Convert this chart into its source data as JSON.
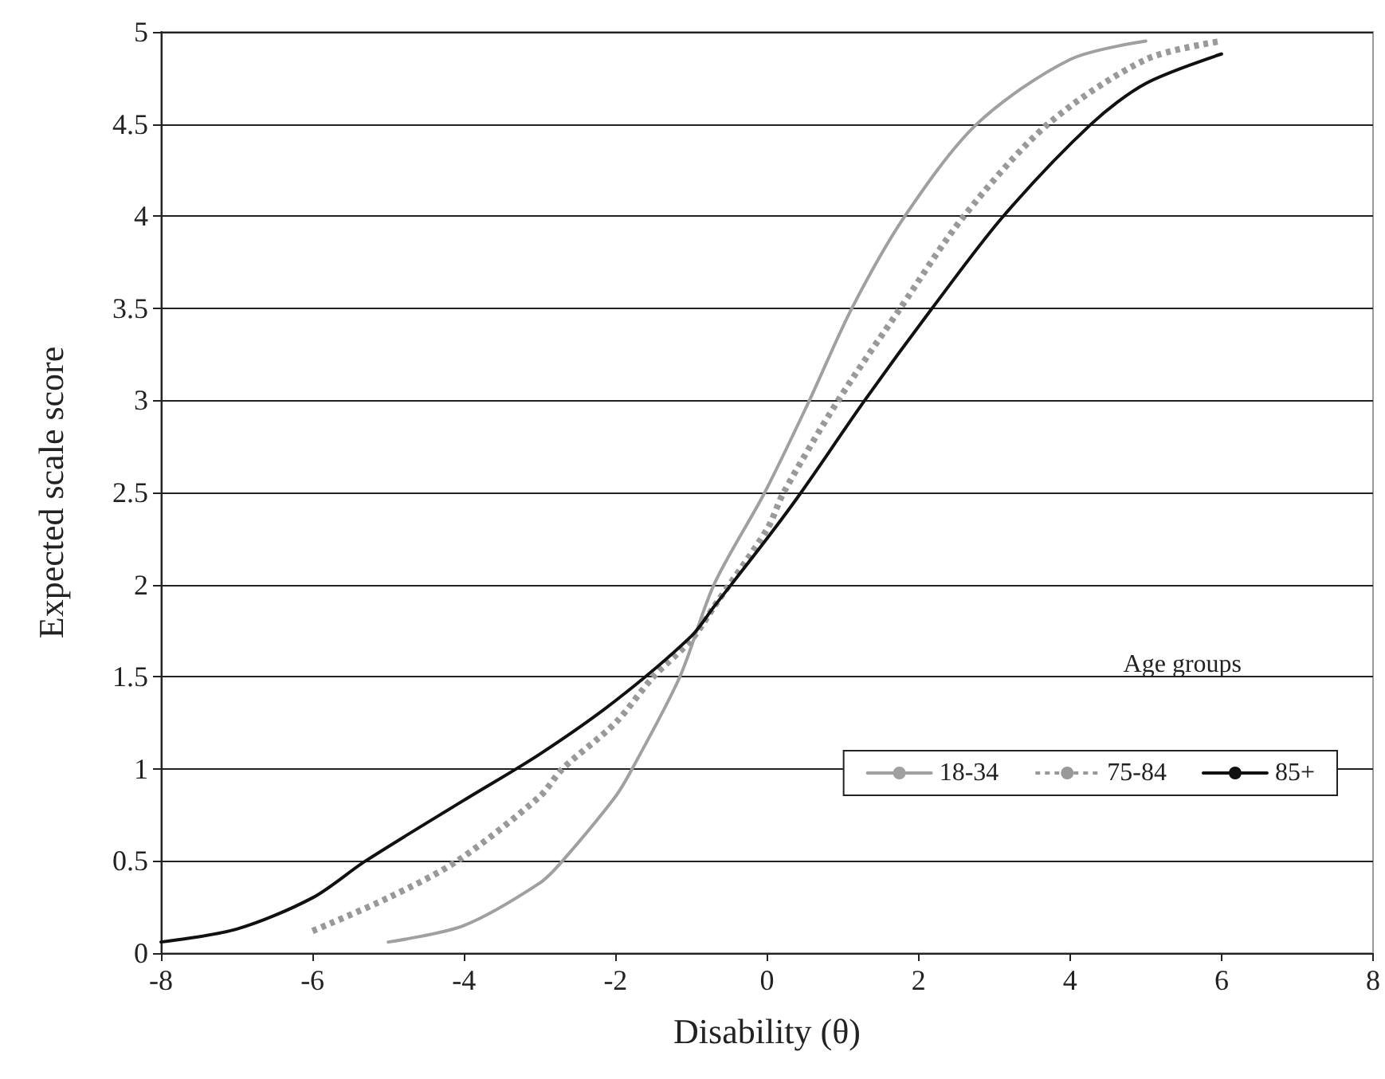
{
  "chart_data": {
    "type": "line",
    "xlabel": "Disability (θ)",
    "ylabel": "Expected scale score",
    "legend_title": "Age groups",
    "legend": "bottom right",
    "grid": "y",
    "marker": "none",
    "xlim": [
      -8,
      8
    ],
    "xticks": [
      -8,
      -6,
      -4,
      -2,
      0,
      2,
      4,
      6,
      8
    ],
    "ylim": [
      0,
      5
    ],
    "yticks": [
      0,
      0.5,
      1,
      1.5,
      2,
      2.5,
      3,
      3.5,
      4,
      4.5,
      5
    ],
    "series": [
      {
        "name": "18-34",
        "color": "#a0a0a0",
        "line_style": "solid",
        "x": [
          -5,
          -4,
          -3,
          -2.7,
          -2,
          -1.78,
          -1.15,
          -0.7,
          -0.03,
          0.56,
          1.12,
          1.82,
          2.77,
          4,
          5
        ],
        "values": [
          0.06,
          0.15,
          0.38,
          0.5,
          0.85,
          1,
          1.5,
          2,
          2.5,
          3,
          3.5,
          4,
          4.5,
          4.85,
          4.95
        ]
      },
      {
        "name": "75-84",
        "color": "#999999",
        "line_style": "dotted",
        "x": [
          -6,
          -5,
          -4.09,
          -3,
          -2.7,
          -2,
          -1.5,
          -1,
          -0.7,
          0,
          0.22,
          0.94,
          1.76,
          2.6,
          3.71,
          5,
          6
        ],
        "values": [
          0.12,
          0.3,
          0.5,
          0.85,
          1,
          1.25,
          1.5,
          1.7,
          1.88,
          2.3,
          2.5,
          3,
          3.5,
          4,
          4.5,
          4.85,
          4.95
        ]
      },
      {
        "name": "85+",
        "color": "#111111",
        "line_style": "solid",
        "x": [
          -8,
          -7,
          -6,
          -5.3,
          -4,
          -3,
          -2,
          -1,
          -0.7,
          0,
          0.45,
          1.29,
          2.18,
          3.12,
          4.28,
          5,
          6
        ],
        "values": [
          0.06,
          0.13,
          0.3,
          0.5,
          0.83,
          1.08,
          1.37,
          1.72,
          1.88,
          2.25,
          2.5,
          3,
          3.5,
          4,
          4.5,
          4.72,
          4.88
        ]
      }
    ]
  }
}
